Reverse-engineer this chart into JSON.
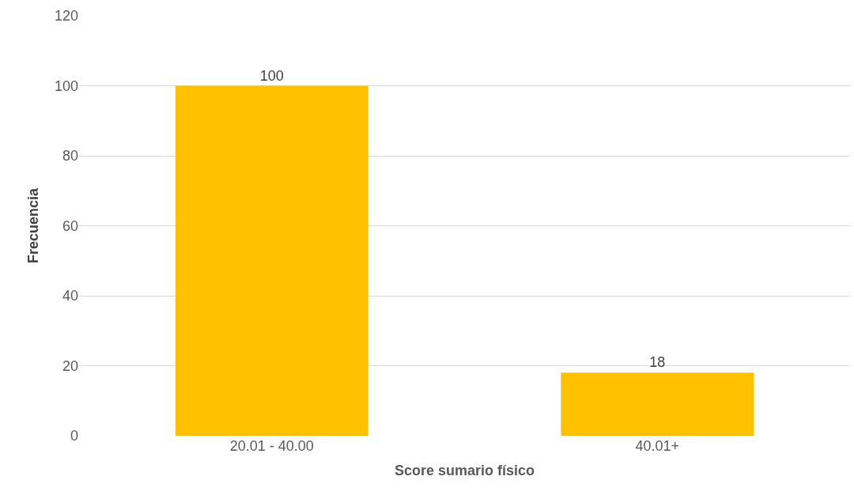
{
  "chart_data": {
    "type": "bar",
    "xlabel": "Score sumario físico",
    "ylabel": "Frecuencia",
    "categories": [
      "20.01 - 40.00",
      "40.01+"
    ],
    "values": [
      100,
      18
    ],
    "color": "#ffc000",
    "ylim": [
      0,
      120
    ],
    "yticks": [
      0,
      20,
      40,
      60,
      80,
      100,
      120
    ],
    "grid": "y",
    "data_labels": true
  }
}
